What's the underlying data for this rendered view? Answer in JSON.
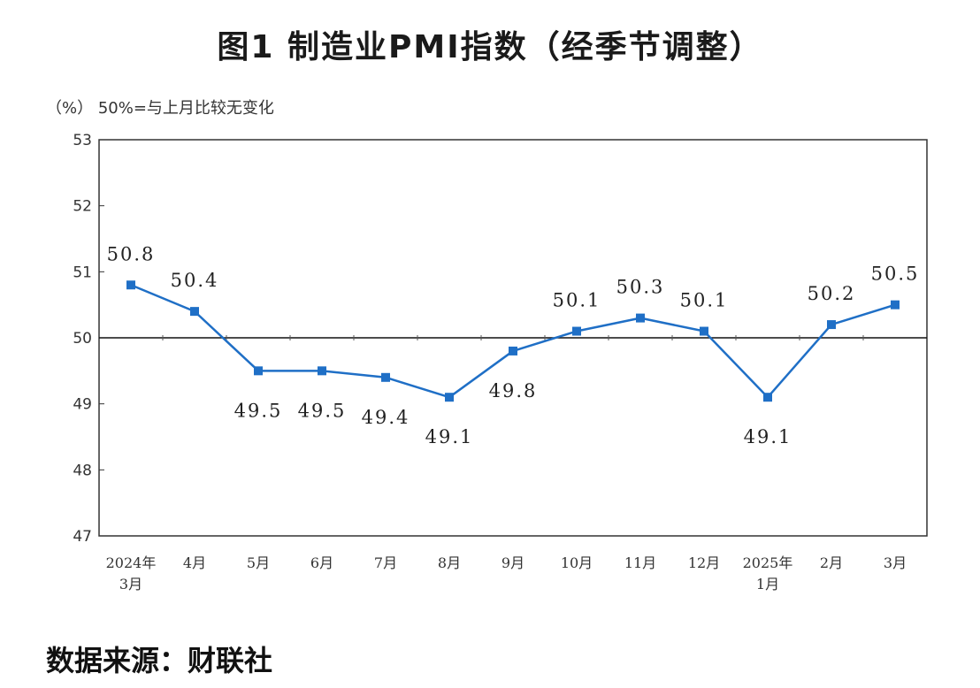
{
  "title": "图1  制造业PMI指数（经季节调整）",
  "note": "（%）  50%=与上月比较无变化",
  "source": "数据来源：财联社",
  "colors": {
    "line": "#1f6fc6",
    "axis": "#000000",
    "text": "#222222"
  },
  "chart_data": {
    "type": "line",
    "categories": [
      "2024年\n3月",
      "4月",
      "5月",
      "6月",
      "7月",
      "8月",
      "9月",
      "10月",
      "11月",
      "12月",
      "2025年\n1月",
      "2月",
      "3月"
    ],
    "series": [
      {
        "values": [
          50.8,
          50.4,
          49.5,
          49.5,
          49.4,
          49.1,
          49.8,
          50.1,
          50.3,
          50.1,
          49.1,
          50.2,
          50.5
        ]
      }
    ],
    "data_labels": [
      "50.8",
      "50.4",
      "49.5",
      "49.5",
      "49.4",
      "49.1",
      "49.8",
      "50.1",
      "50.3",
      "50.1",
      "49.1",
      "50.2",
      "50.5"
    ],
    "yticks": [
      "53",
      "52",
      "51",
      "50",
      "49",
      "48",
      "47"
    ],
    "ylim": [
      47,
      53
    ],
    "reference_line": 50,
    "grid": false
  }
}
